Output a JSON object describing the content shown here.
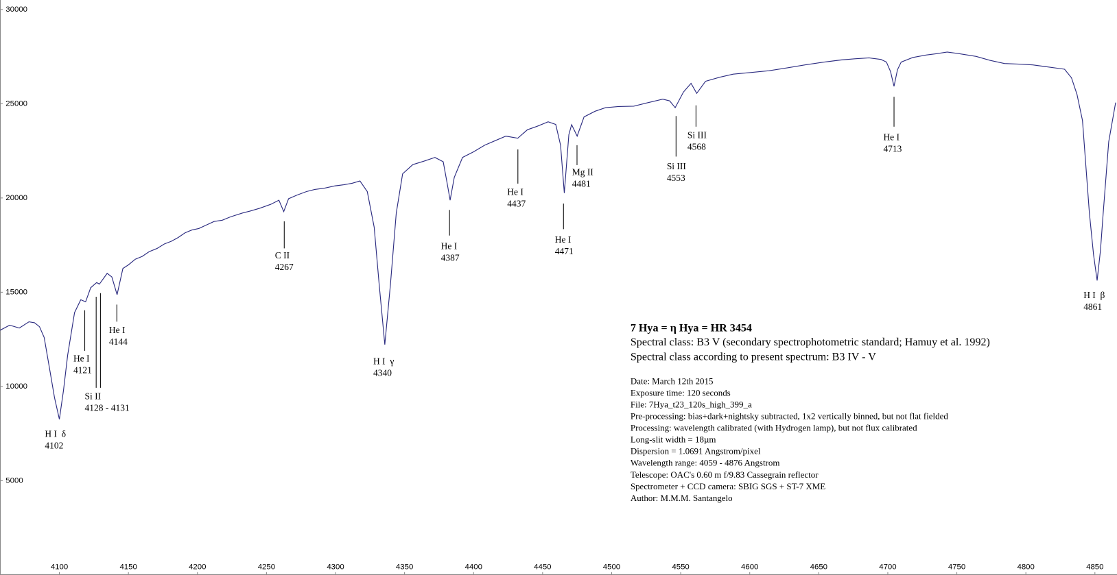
{
  "chart_data": {
    "type": "line",
    "xlim": [
      4057,
      4866
    ],
    "ylim": [
      0,
      30500
    ],
    "xticks": [
      4100,
      4150,
      4200,
      4250,
      4300,
      4350,
      4400,
      4450,
      4500,
      4550,
      4600,
      4650,
      4700,
      4750,
      4800,
      4850
    ],
    "yticks": [
      5000,
      10000,
      15000,
      20000,
      25000,
      30000
    ],
    "grid": false,
    "series": [
      {
        "color": "#2b2b80",
        "x": [
          4057,
          4064,
          4071,
          4078,
          4082,
          4085.6,
          4089,
          4093,
          4096.5,
          4100,
          4103,
          4106,
          4111,
          4115.5,
          4119,
          4122.7,
          4127,
          4129,
          4134.6,
          4138,
          4141.8,
          4146,
          4150,
          4155,
          4160,
          4165,
          4170.7,
          4176,
          4181,
          4186,
          4191,
          4196,
          4201,
          4206,
          4212,
          4218,
          4224,
          4232.6,
          4238,
          4245,
          4253,
          4259,
          4262.5,
          4266,
          4272,
          4279,
          4285,
          4292,
          4299.6,
          4306,
          4312,
          4317.7,
          4323,
          4328,
          4331.6,
          4335.7,
          4339.8,
          4344,
          4348.6,
          4356,
          4364,
          4372,
          4378,
          4381,
          4383,
          4386,
          4392,
          4400,
          4408,
          4416,
          4423.4,
          4432,
          4439,
          4446,
          4454,
          4459.5,
          4463,
          4465.7,
          4469,
          4471,
          4475,
          4480,
          4488,
          4495.6,
          4505,
          4516,
          4526,
          4537,
          4542,
          4546,
          4552,
          4557.5,
          4561.6,
          4568,
          4578,
          4588,
          4600,
          4614,
          4627,
          4640,
          4653,
          4666,
          4676,
          4686.5,
          4695,
          4699,
          4702,
          4704.5,
          4707,
          4709.7,
          4718,
          4727.7,
          4735,
          4743,
          4752,
          4764,
          4774,
          4784.5,
          4795,
          4805,
          4816,
          4828,
          4833,
          4837,
          4841,
          4846,
          4849,
          4851.6,
          4854,
          4856,
          4860,
          4865
        ],
        "values": [
          12980,
          13250,
          13100,
          13430,
          13380,
          13170,
          12600,
          10900,
          9400,
          8260,
          9800,
          11660,
          13920,
          14600,
          14490,
          15240,
          15510,
          15430,
          16000,
          15810,
          14870,
          16260,
          16450,
          16750,
          16900,
          17150,
          17320,
          17560,
          17700,
          17900,
          18150,
          18300,
          18380,
          18550,
          18750,
          18820,
          19000,
          19200,
          19300,
          19450,
          19660,
          19880,
          19280,
          19960,
          20150,
          20340,
          20450,
          20520,
          20640,
          20700,
          20780,
          20900,
          20340,
          18450,
          15430,
          12220,
          15430,
          19200,
          21280,
          21770,
          21950,
          22150,
          21920,
          20720,
          19880,
          21090,
          22150,
          22450,
          22800,
          23050,
          23280,
          23170,
          23620,
          23800,
          24040,
          23900,
          22800,
          20260,
          23360,
          23890,
          23280,
          24300,
          24600,
          24790,
          24850,
          24870,
          25050,
          25240,
          25150,
          24790,
          25620,
          26080,
          25550,
          26190,
          26400,
          26570,
          26650,
          26750,
          26900,
          27060,
          27200,
          27320,
          27380,
          27430,
          27350,
          27210,
          26700,
          25920,
          26800,
          27210,
          27450,
          27580,
          27650,
          27740,
          27650,
          27510,
          27300,
          27130,
          27100,
          27060,
          26950,
          26830,
          26380,
          25500,
          24110,
          19200,
          17000,
          15620,
          17200,
          19200,
          22980,
          25060
        ]
      }
    ],
    "annotations": [
      {
        "label": "H I  δ",
        "wavelength": "4102"
      },
      {
        "label": "He I",
        "wavelength": "4121"
      },
      {
        "label": "Si II",
        "wavelength": "4128 - 4131"
      },
      {
        "label": "He I",
        "wavelength": "4144"
      },
      {
        "label": "C II",
        "wavelength": "4267"
      },
      {
        "label": "H I  γ",
        "wavelength": "4340"
      },
      {
        "label": "He I",
        "wavelength": "4387"
      },
      {
        "label": "He I",
        "wavelength": "4437"
      },
      {
        "label": "He I",
        "wavelength": "4471"
      },
      {
        "label": "Mg II",
        "wavelength": "4481"
      },
      {
        "label": "Si III",
        "wavelength": "4553"
      },
      {
        "label": "Si III",
        "wavelength": "4568"
      },
      {
        "label": "He I",
        "wavelength": "4713"
      },
      {
        "label": "H I  β",
        "wavelength": "4861"
      }
    ],
    "info_title": "7 Hya = η Hya = HR 3454",
    "info_lines": [
      "Spectral class: B3 V  (secondary spectrophotometric standard; Hamuy et al. 1992)",
      "Spectral class according to present spectrum: B3 IV - V"
    ],
    "notes": [
      "Date: March 12th 2015",
      "Exposure time: 120 seconds",
      "File: 7Hya_t23_120s_high_399_a",
      "Pre-processing: bias+dark+nightsky subtracted, 1x2 vertically binned, but not flat fielded",
      "Processing: wavelength calibrated (with Hydrogen lamp), but not flux calibrated",
      "Long-slit width = 18µm",
      "Dispersion = 1.0691 Angstrom/pixel",
      "Wavelength range: 4059 - 4876 Angstrom",
      "Telescope: OAC's 0.60 m f/9.83 Cassegrain reflector",
      "Spectrometer + CCD camera: SBIG SGS + ST-7 XME",
      "Author: M.M.M. Santangelo"
    ]
  }
}
